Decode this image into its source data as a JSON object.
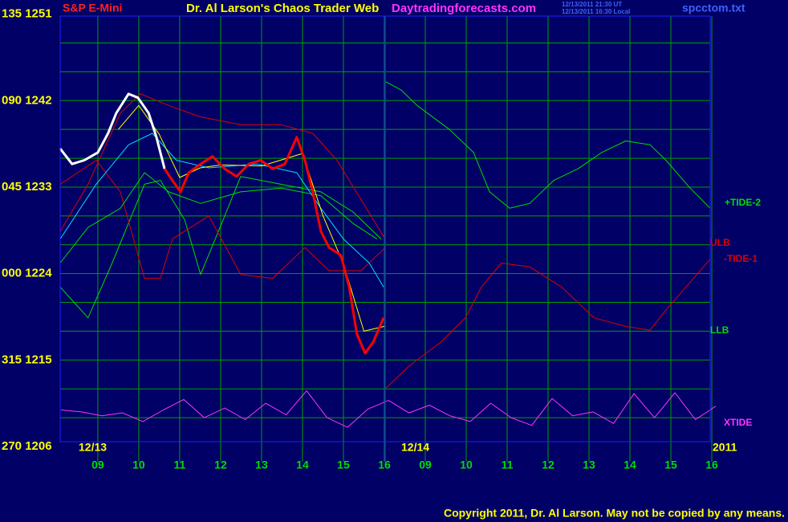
{
  "chart_data": {
    "type": "line",
    "title": "Dr. Al Larson's Chaos Trader Web",
    "subtitle": "S&P E-Mini",
    "source": "Daytradingforecasts.com",
    "timestamps": [
      "12/13/2011 21:30 UT",
      "12/13/2011 16:30 Local"
    ],
    "file_name": "spcctom.txt",
    "copyright": "Copyright 2011, Dr. Al Larson. May not be copied by any means.",
    "date_labels": [
      "12/13",
      "12/14",
      "2011"
    ],
    "xlim": [
      -0.92,
      14.96
    ],
    "xticks": [
      {
        "value": 0,
        "label": "09"
      },
      {
        "value": 1,
        "label": "10"
      },
      {
        "value": 2,
        "label": "11"
      },
      {
        "value": 3,
        "label": "12"
      },
      {
        "value": 4,
        "label": "13"
      },
      {
        "value": 5,
        "label": "14"
      },
      {
        "value": 6,
        "label": "15"
      },
      {
        "value": 7,
        "label": "16"
      },
      {
        "value": 8,
        "label": "09"
      },
      {
        "value": 9,
        "label": "10"
      },
      {
        "value": 10,
        "label": "11"
      },
      {
        "value": 11,
        "label": "12"
      },
      {
        "value": 12,
        "label": "13"
      },
      {
        "value": 13,
        "label": "14"
      },
      {
        "value": 14,
        "label": "15"
      },
      {
        "value": 15,
        "label": "16"
      }
    ],
    "ylim": [
      1206.5,
      1250.8
    ],
    "yticks": [
      {
        "value": 1251,
        "label": "135 1251"
      },
      {
        "value": 1242,
        "label": "090 1242"
      },
      {
        "value": 1233,
        "label": "045 1233"
      },
      {
        "value": 1224,
        "label": "000 1224"
      },
      {
        "value": 1215,
        "label": "315 1215"
      },
      {
        "value": 1206,
        "label": "270 1206"
      }
    ],
    "minor_yticks": [
      1209,
      1212,
      1215,
      1218,
      1221,
      1224,
      1227,
      1230,
      1233,
      1236,
      1239,
      1242,
      1245,
      1248
    ],
    "grid": true,
    "grid_color": "#00a000",
    "price": [
      {
        "color": "#ffffff",
        "x": [
          -0.92,
          -0.63,
          -0.33,
          0,
          0.25,
          0.45,
          0.75,
          0.98,
          1.24,
          1.43,
          1.63
        ],
        "values": [
          1237.0,
          1235.4,
          1235.8,
          1236.6,
          1238.6,
          1240.7,
          1242.7,
          1242.3,
          1240.7,
          1238.2,
          1234.9
        ]
      },
      {
        "color": "#ff0000",
        "x": [
          1.63,
          1.82,
          2.02,
          2.22,
          2.51,
          2.8,
          3.1,
          3.39,
          3.69,
          3.98,
          4.27,
          4.57,
          4.86,
          5.06,
          5.25,
          5.45,
          5.65,
          5.94,
          6.14,
          6.33,
          6.53,
          6.73,
          6.98
        ],
        "values": [
          1234.9,
          1233.7,
          1232.5,
          1234.5,
          1235.4,
          1236.2,
          1234.9,
          1234.1,
          1235.4,
          1235.8,
          1234.9,
          1235.4,
          1238.2,
          1235.8,
          1232.5,
          1228.4,
          1226.7,
          1225.9,
          1222.6,
          1217.7,
          1215.7,
          1216.9,
          1219.4
        ]
      }
    ],
    "overlays": [
      {
        "color": "#00e0ff",
        "x": [
          -0.92,
          -0.04,
          0.75,
          1.33,
          1.92,
          2.71,
          3.88,
          4.86,
          5.45,
          6.0,
          6.63,
          6.98
        ],
        "values": [
          1227.6,
          1233.3,
          1237.4,
          1238.6,
          1235.8,
          1235.0,
          1235.4,
          1234.5,
          1230.8,
          1227.6,
          1225.1,
          1222.6
        ]
      },
      {
        "color": "#ffff00",
        "x": [
          0.5,
          1,
          1.5,
          2,
          2.5,
          3,
          4,
          5,
          5.5,
          6,
          6.5,
          7
        ],
        "values": [
          1239,
          1241.5,
          1238.5,
          1234,
          1235,
          1235.3,
          1235.2,
          1236.5,
          1230,
          1225,
          1218,
          1218.5
        ]
      }
    ],
    "series": [
      {
        "name": "+TIDE-2",
        "color": "#00dd00",
        "x": [
          -0.92,
          -0.24,
          0.35,
          1.14,
          1.53,
          2.12,
          2.51,
          3.1,
          3.49,
          4.47,
          5.45,
          6.24,
          6.92,
          7.02,
          7.02,
          7.41,
          7.8,
          8.59,
          9.18,
          9.57,
          10.06,
          10.55,
          11.14,
          11.73,
          12.31,
          12.9,
          13.49,
          13.88,
          14.47,
          14.96
        ],
        "values": [
          1222.6,
          1219.4,
          1225.1,
          1233.3,
          1233.7,
          1229.6,
          1223.9,
          1230.0,
          1234.1,
          1233.3,
          1232.5,
          1230.4,
          1227.6,
          null,
          1244.0,
          1243.1,
          1241.5,
          1239.0,
          1236.6,
          1232.5,
          1230.8,
          1231.3,
          1233.7,
          1234.9,
          1236.6,
          1237.8,
          1237.4,
          1235.8,
          1232.9,
          1230.8
        ]
      },
      {
        "name": "ULB",
        "color": "#dd0000",
        "x": [
          -0.92,
          -0.24,
          0.55,
          1.04,
          1.73,
          2.51,
          3.49,
          4.47,
          5.25,
          5.84,
          6.43,
          7.02
        ],
        "values": [
          1228.4,
          1233.3,
          1240.7,
          1242.7,
          1241.5,
          1240.3,
          1239.5,
          1239.5,
          1238.6,
          1235.8,
          1231.7,
          1227.6
        ]
      },
      {
        "name": "-TIDE-1",
        "color": "#dd0000",
        "x": [
          -0.92,
          -0.04,
          0.55,
          1.14,
          1.53,
          1.82,
          2.71,
          3.49,
          4.27,
          5.06,
          5.65,
          6.43,
          7.02,
          7.02,
          7.02,
          7.61,
          8.39,
          8.98,
          9.37,
          9.86,
          10.55,
          11.33,
          12.12,
          12.9,
          13.49,
          13.88,
          14.47,
          14.96
        ],
        "values": [
          1233.3,
          1235.8,
          1232.5,
          1223.5,
          1223.5,
          1227.6,
          1230.0,
          1223.9,
          1223.5,
          1226.7,
          1224.3,
          1224.3,
          1226.7,
          null,
          1212.0,
          1214.4,
          1216.9,
          1219.4,
          1222.6,
          1225.1,
          1224.7,
          1222.6,
          1219.4,
          1218.5,
          1218.1,
          1220.2,
          1223.1,
          1225.5
        ]
      },
      {
        "name": "LLB",
        "color": "#00dd00",
        "x": [
          -0.92,
          -0.24,
          0.55,
          1.14,
          1.73,
          2.51,
          3.49,
          4.47,
          5.45,
          6.24,
          6.82
        ],
        "values": [
          1225.1,
          1228.8,
          1230.8,
          1234.5,
          1232.5,
          1231.3,
          1232.5,
          1232.9,
          1232.1,
          1229.2,
          1227.6
        ]
      },
      {
        "name": "XTIDE",
        "color": "#ff33ff",
        "x": [
          -0.9,
          -0.4,
          0.1,
          0.6,
          1.1,
          1.6,
          2.1,
          2.6,
          3.1,
          3.6,
          4.1,
          4.6,
          5.1,
          5.6,
          6.1,
          6.6,
          7.1,
          7.6,
          8.1,
          8.6,
          9.1,
          9.6,
          10.1,
          10.6,
          11.1,
          11.6,
          12.1,
          12.6,
          13.1,
          13.6,
          14.1,
          14.6,
          15.1
        ],
        "values": [
          1209.8,
          1209.6,
          1209.2,
          1209.5,
          1208.6,
          1209.8,
          1210.9,
          1209.0,
          1210.0,
          1208.8,
          1210.5,
          1209.3,
          1211.8,
          1209.0,
          1208.0,
          1209.9,
          1210.8,
          1209.5,
          1210.3,
          1209.2,
          1208.6,
          1210.5,
          1209.0,
          1208.2,
          1211.0,
          1209.2,
          1209.6,
          1208.4,
          1211.5,
          1209.0,
          1211.6,
          1208.8,
          1210.2
        ]
      }
    ]
  }
}
